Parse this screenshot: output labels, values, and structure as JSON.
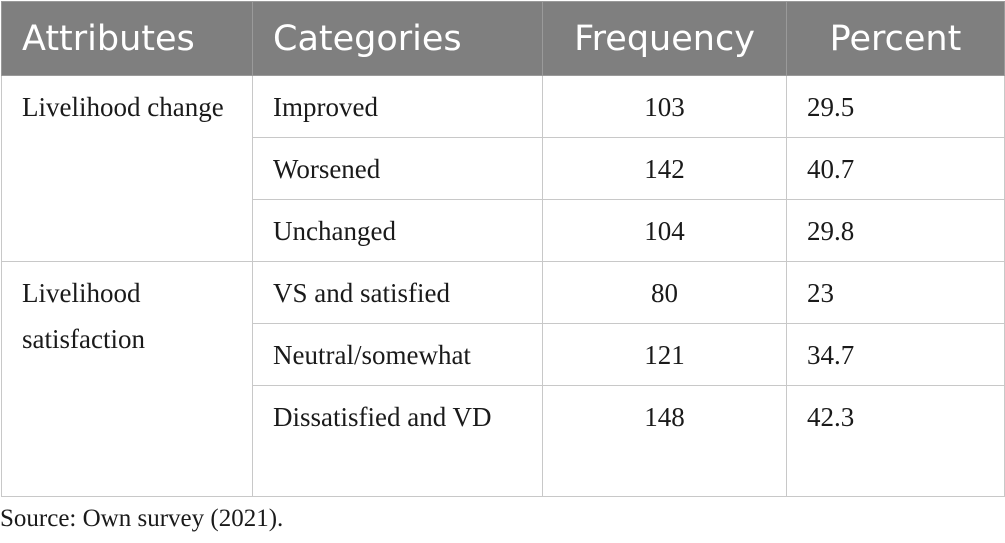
{
  "table": {
    "headers": {
      "attributes": "Attributes",
      "categories": "Categories",
      "frequency": "Frequency",
      "percent": "Percent"
    },
    "groups": [
      {
        "attribute": "Livelihood change",
        "rows": [
          {
            "category": "Improved",
            "frequency": "103",
            "percent": "29.5"
          },
          {
            "category": "Worsened",
            "frequency": "142",
            "percent": "40.7"
          },
          {
            "category": "Unchanged",
            "frequency": "104",
            "percent": "29.8"
          }
        ]
      },
      {
        "attribute": "Livelihood satisfaction",
        "rows": [
          {
            "category": "VS and satisfied",
            "frequency": "80",
            "percent": "23"
          },
          {
            "category": "Neutral/somewhat",
            "frequency": "121",
            "percent": "34.7"
          },
          {
            "category": "Dissatisfied and VD",
            "frequency": "148",
            "percent": "42.3"
          }
        ]
      }
    ]
  },
  "source": "Source: Own survey (2021)."
}
